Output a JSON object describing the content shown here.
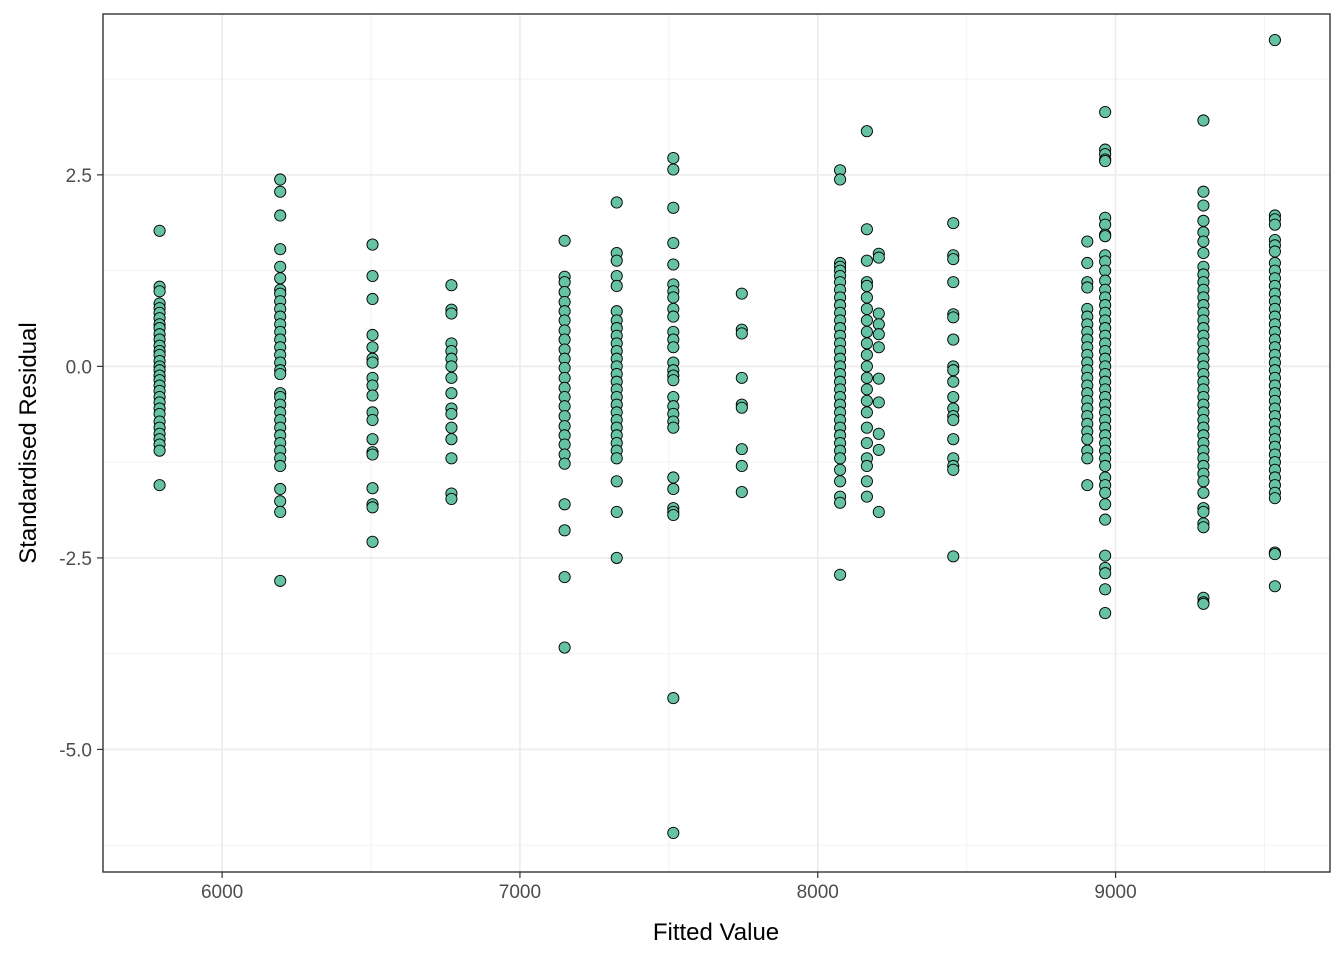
{
  "chart_data": {
    "type": "scatter",
    "title": "",
    "xlabel": "Fitted Value",
    "ylabel": "Standardised Residual",
    "xlim": [
      5600,
      9720
    ],
    "ylim": [
      -6.6,
      4.6
    ],
    "x_ticks": [
      6000,
      7000,
      8000,
      9000
    ],
    "x_tick_labels": [
      "6000",
      "7000",
      "8000",
      "9000"
    ],
    "y_ticks": [
      -5.0,
      -2.5,
      0.0,
      2.5
    ],
    "y_tick_labels": [
      "-5.0",
      "-2.5",
      "0.0",
      "2.5"
    ],
    "grid": true,
    "point_fill": "#66c2a5",
    "point_stroke": "#000000",
    "groups": [
      {
        "x": 5790,
        "y": [
          1.77,
          1.04,
          0.98,
          0.82,
          0.76,
          0.7,
          0.63,
          0.55,
          0.5,
          0.42,
          0.35,
          0.27,
          0.2,
          0.15,
          0.07,
          0.0,
          -0.05,
          -0.12,
          -0.18,
          -0.25,
          -0.32,
          -0.4,
          -0.47,
          -0.55,
          -0.62,
          -0.72,
          -0.8,
          -0.88,
          -0.95,
          -1.02,
          -1.1,
          -1.55
        ]
      },
      {
        "x": 6195,
        "y": [
          2.44,
          2.28,
          1.97,
          1.53,
          1.3,
          1.15,
          1.0,
          0.95,
          0.85,
          0.75,
          0.65,
          0.55,
          0.45,
          0.35,
          0.25,
          0.15,
          0.05,
          -0.05,
          -0.1,
          -0.35,
          -0.4,
          -0.5,
          -0.6,
          -0.7,
          -0.8,
          -0.9,
          -1.0,
          -1.1,
          -1.2,
          -1.3,
          -1.6,
          -1.76,
          -1.9,
          -2.8
        ]
      },
      {
        "x": 6505,
        "y": [
          1.59,
          1.18,
          0.88,
          0.41,
          0.25,
          0.1,
          0.05,
          -0.15,
          -0.25,
          -0.38,
          -0.6,
          -0.7,
          -0.95,
          -1.12,
          -1.15,
          -1.59,
          -1.8,
          -1.84,
          -2.29
        ]
      },
      {
        "x": 6770,
        "y": [
          1.06,
          0.74,
          0.69,
          0.3,
          0.2,
          0.1,
          0.0,
          -0.15,
          -0.35,
          -0.55,
          -0.62,
          -0.8,
          -0.95,
          -1.2,
          -1.66,
          -1.73
        ]
      },
      {
        "x": 7150,
        "y": [
          1.64,
          1.17,
          1.1,
          0.97,
          0.84,
          0.72,
          0.6,
          0.47,
          0.35,
          0.22,
          0.1,
          -0.02,
          -0.15,
          -0.28,
          -0.4,
          -0.52,
          -0.65,
          -0.78,
          -0.9,
          -1.02,
          -1.15,
          -1.27,
          -1.8,
          -2.14,
          -2.75,
          -3.67
        ]
      },
      {
        "x": 7325,
        "y": [
          2.14,
          1.48,
          1.38,
          1.18,
          1.05,
          0.72,
          0.6,
          0.5,
          0.4,
          0.3,
          0.2,
          0.1,
          0.0,
          -0.1,
          -0.2,
          -0.3,
          -0.4,
          -0.5,
          -0.6,
          -0.7,
          -0.8,
          -0.9,
          -1.0,
          -1.1,
          -1.2,
          -1.5,
          -1.9,
          -2.5
        ]
      },
      {
        "x": 7515,
        "y": [
          2.72,
          2.57,
          2.07,
          1.61,
          1.33,
          1.07,
          0.98,
          0.9,
          0.75,
          0.65,
          0.45,
          0.35,
          0.25,
          0.05,
          -0.05,
          -0.12,
          -0.18,
          -0.4,
          -0.52,
          -0.62,
          -0.72,
          -0.8,
          -1.45,
          -1.6,
          -1.85,
          -1.9,
          -1.94,
          -4.33,
          -6.09
        ]
      },
      {
        "x": 7745,
        "y": [
          0.95,
          0.48,
          0.43,
          -0.15,
          -0.5,
          -0.54,
          -1.08,
          -1.3,
          -1.64
        ]
      },
      {
        "x": 8075,
        "y": [
          2.56,
          2.44,
          1.35,
          1.3,
          1.25,
          1.18,
          1.1,
          1.0,
          0.9,
          0.8,
          0.7,
          0.6,
          0.5,
          0.4,
          0.3,
          0.2,
          0.1,
          0.0,
          -0.1,
          -0.2,
          -0.3,
          -0.4,
          -0.5,
          -0.6,
          -0.7,
          -0.8,
          -0.9,
          -1.0,
          -1.1,
          -1.2,
          -1.35,
          -1.5,
          -1.7,
          -1.78,
          -2.72
        ]
      },
      {
        "x": 8165,
        "y": [
          3.07,
          1.79,
          1.38,
          1.1,
          1.05,
          0.9,
          0.75,
          0.6,
          0.45,
          0.3,
          0.15,
          0.0,
          -0.15,
          -0.3,
          -0.45,
          -0.6,
          -0.8,
          -1.0,
          -1.2,
          -1.3,
          -1.5,
          -1.7
        ]
      },
      {
        "x": 8205,
        "y": [
          1.47,
          1.42,
          0.69,
          0.55,
          0.42,
          0.25,
          -0.16,
          -0.47,
          -0.88,
          -1.09,
          -1.9
        ]
      },
      {
        "x": 8455,
        "y": [
          1.87,
          1.45,
          1.4,
          1.1,
          0.68,
          0.64,
          0.35,
          0.0,
          -0.05,
          -0.2,
          -0.4,
          -0.55,
          -0.65,
          -0.7,
          -0.95,
          -1.2,
          -1.3,
          -1.35,
          -2.48
        ]
      },
      {
        "x": 8905,
        "y": [
          1.63,
          1.35,
          1.1,
          1.03,
          0.75,
          0.65,
          0.55,
          0.45,
          0.35,
          0.25,
          0.15,
          0.05,
          -0.05,
          -0.15,
          -0.25,
          -0.35,
          -0.45,
          -0.55,
          -0.65,
          -0.75,
          -0.85,
          -0.95,
          -1.1,
          -1.2,
          -1.55
        ]
      },
      {
        "x": 8965,
        "y": [
          3.32,
          2.83,
          2.77,
          2.7,
          2.68,
          1.94,
          1.85,
          1.72,
          1.7,
          1.45,
          1.37,
          1.25,
          1.12,
          1.0,
          0.9,
          0.8,
          0.7,
          0.6,
          0.5,
          0.4,
          0.3,
          0.2,
          0.1,
          0.0,
          -0.1,
          -0.2,
          -0.3,
          -0.4,
          -0.5,
          -0.6,
          -0.7,
          -0.8,
          -0.9,
          -1.0,
          -1.1,
          -1.2,
          -1.3,
          -1.45,
          -1.55,
          -1.65,
          -1.8,
          -2.0,
          -2.47,
          -2.63,
          -2.7,
          -2.91,
          -3.22
        ]
      },
      {
        "x": 9295,
        "y": [
          3.21,
          2.28,
          2.1,
          1.9,
          1.75,
          1.63,
          1.48,
          1.3,
          1.2,
          1.1,
          1.0,
          0.9,
          0.8,
          0.7,
          0.6,
          0.5,
          0.4,
          0.3,
          0.2,
          0.1,
          0.0,
          -0.1,
          -0.2,
          -0.3,
          -0.4,
          -0.5,
          -0.6,
          -0.7,
          -0.8,
          -0.9,
          -1.0,
          -1.1,
          -1.2,
          -1.3,
          -1.4,
          -1.5,
          -1.65,
          -1.85,
          -1.9,
          -2.05,
          -2.1,
          -3.02,
          -3.08,
          -3.1
        ]
      },
      {
        "x": 9535,
        "y": [
          4.26,
          1.97,
          1.92,
          1.85,
          1.65,
          1.58,
          1.5,
          1.35,
          1.25,
          1.15,
          1.05,
          0.95,
          0.85,
          0.75,
          0.65,
          0.55,
          0.45,
          0.35,
          0.25,
          0.15,
          0.05,
          -0.05,
          -0.15,
          -0.25,
          -0.35,
          -0.45,
          -0.55,
          -0.65,
          -0.75,
          -0.85,
          -0.95,
          -1.05,
          -1.15,
          -1.25,
          -1.35,
          -1.45,
          -1.55,
          -1.65,
          -1.72,
          -2.43,
          -2.45,
          -2.87
        ]
      }
    ]
  }
}
